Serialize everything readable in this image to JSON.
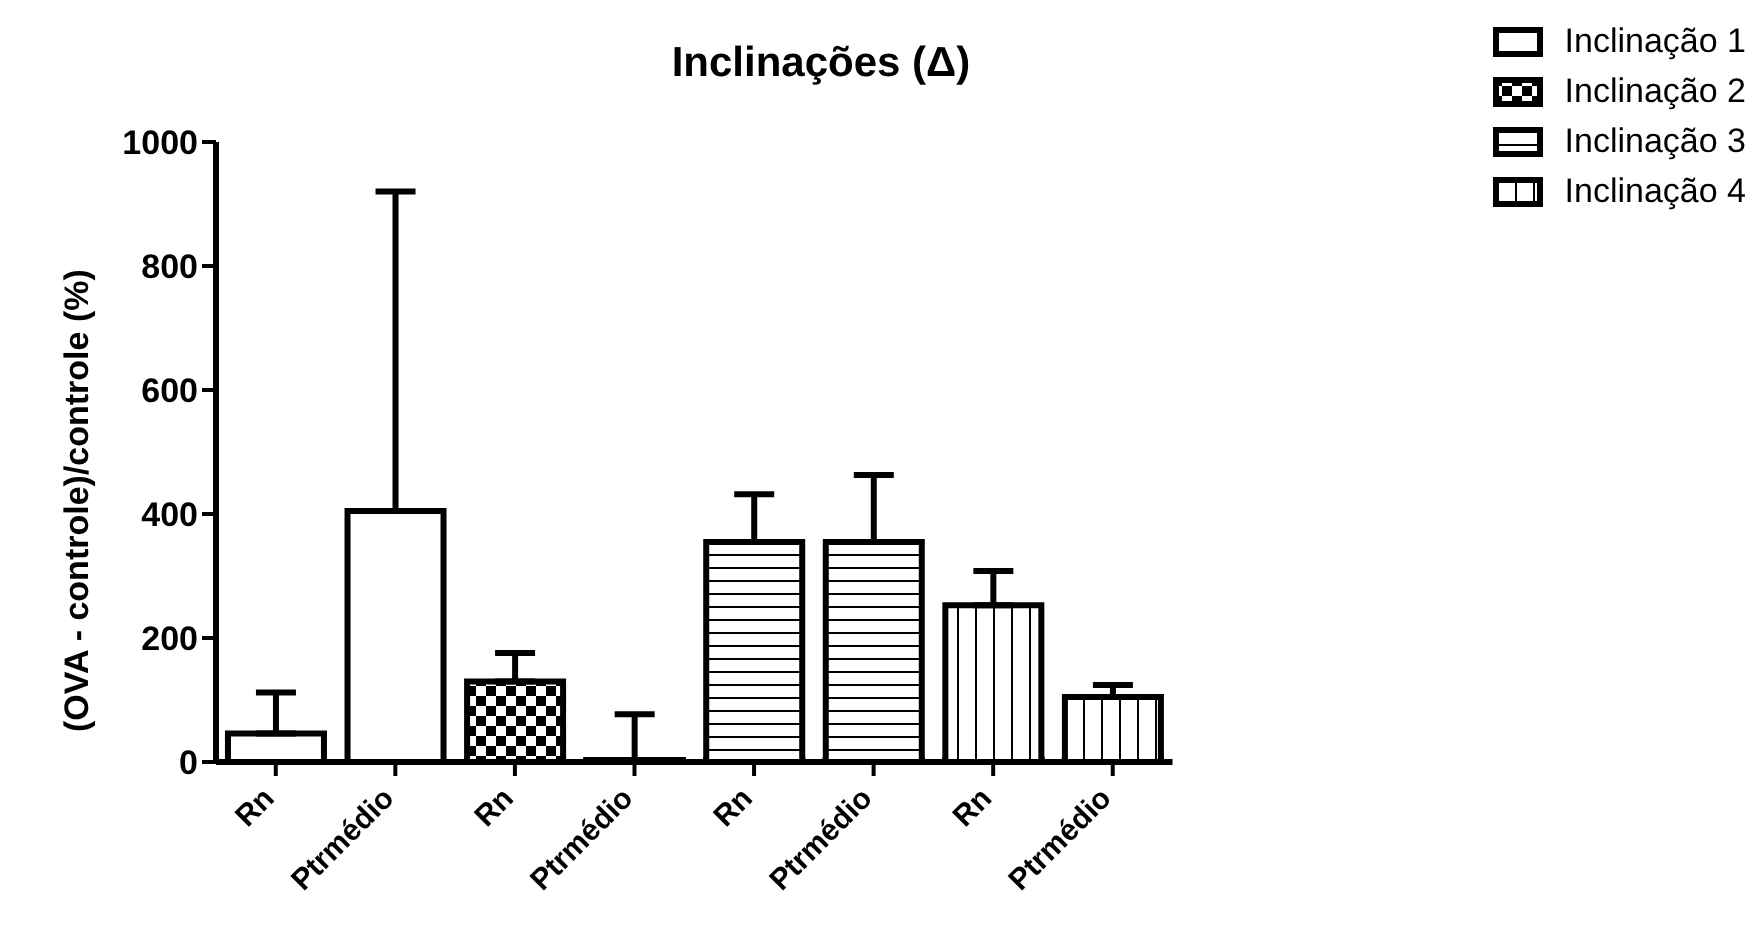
{
  "chart_data": {
    "type": "bar",
    "title": "Inclinações (Δ)",
    "ylabel": "(OVA - controle)/controle  (%)",
    "categories": [
      "Rn",
      "Ptrmédio",
      "Rn",
      "Ptrmédio",
      "Rn",
      "Ptrmédio",
      "Rn",
      "Ptrmédio"
    ],
    "series": [
      {
        "name": "Inclinação 1",
        "color": "#000000",
        "values": [
          46,
          405,
          null,
          null,
          null,
          null,
          null,
          null
        ],
        "errors": [
          [
            46,
            112
          ],
          [
            405,
            920
          ],
          null,
          null,
          null,
          null,
          null,
          null
        ]
      },
      {
        "name": "Inclinação 2",
        "color": "#000000",
        "values": [
          null,
          null,
          130,
          0,
          null,
          null,
          null,
          null
        ],
        "errors": [
          null,
          null,
          [
            130,
            176
          ],
          [
            0,
            77
          ],
          null,
          null,
          null,
          null
        ]
      },
      {
        "name": "Inclinação 3",
        "color": "#000000",
        "values": [
          null,
          null,
          null,
          null,
          355,
          355,
          null,
          null
        ],
        "errors": [
          null,
          null,
          null,
          null,
          [
            355,
            432
          ],
          [
            355,
            463
          ],
          null,
          null
        ]
      },
      {
        "name": "Inclinação 4",
        "color": "#000000",
        "values": [
          null,
          null,
          null,
          null,
          null,
          null,
          253,
          105
        ],
        "errors": [
          null,
          null,
          null,
          null,
          null,
          null,
          [
            253,
            308
          ],
          [
            105,
            124
          ]
        ]
      }
    ],
    "ylim": [
      0,
      1000
    ],
    "yticks": [
      0,
      200,
      400,
      600,
      800,
      1000
    ],
    "grid": false,
    "legend": "top right"
  }
}
